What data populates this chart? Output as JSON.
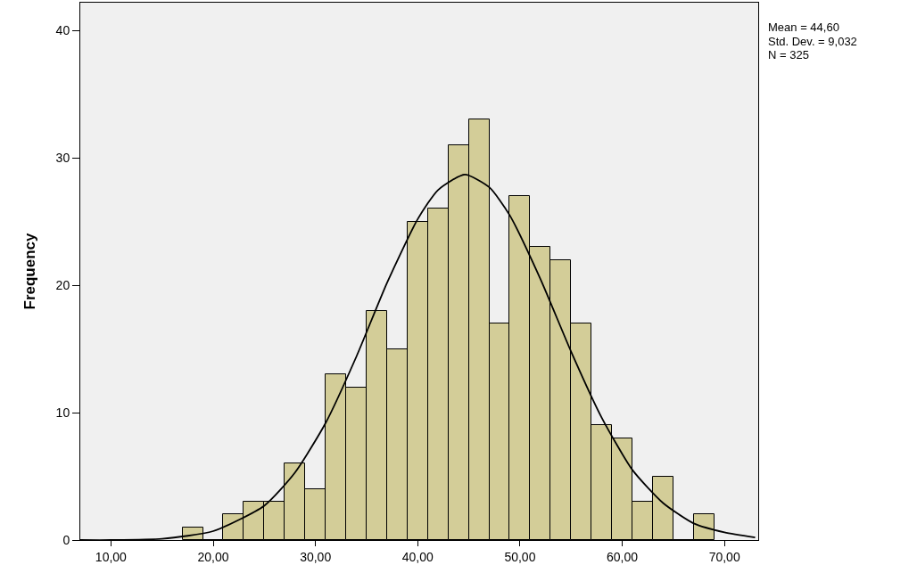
{
  "chart_data": {
    "type": "histogram",
    "ylabel": "Frequency",
    "bins": [
      17,
      19,
      21,
      23,
      25,
      27,
      29,
      31,
      33,
      35,
      37,
      39,
      41,
      43,
      45,
      47,
      49,
      51,
      53,
      55,
      57,
      59,
      61,
      63,
      65,
      67,
      69
    ],
    "values": [
      1,
      0,
      2,
      3,
      3,
      6,
      4,
      13,
      12,
      18,
      15,
      25,
      26,
      31,
      33,
      17,
      27,
      23,
      22,
      17,
      9,
      8,
      3,
      5,
      0,
      2
    ],
    "color": "#d3cd98",
    "series": [
      {
        "type": "line",
        "color": "#000000",
        "x": [
          7,
          10,
          15,
          20,
          25,
          28,
          31,
          34,
          37,
          40,
          42,
          44.6,
          47,
          49,
          52,
          55,
          58,
          61,
          64,
          67,
          70,
          73
        ],
        "values": [
          0,
          0,
          0.1,
          0.7,
          2.7,
          5.3,
          9.2,
          14.4,
          20.2,
          25.2,
          27.5,
          28.7,
          27.7,
          25.5,
          20.5,
          14.8,
          9.6,
          5.5,
          2.9,
          1.3,
          0.6,
          0.2
        ]
      }
    ],
    "xlim": [
      7,
      73.3
    ],
    "ylim": [
      0,
      42.2
    ],
    "xticks": [
      {
        "value": 10,
        "label": "10,00"
      },
      {
        "value": 20,
        "label": "20,00"
      },
      {
        "value": 30,
        "label": "30,00"
      },
      {
        "value": 40,
        "label": "40,00"
      },
      {
        "value": 50,
        "label": "50,00"
      },
      {
        "value": 60,
        "label": "60,00"
      },
      {
        "value": 70,
        "label": "70,00"
      }
    ],
    "yticks": [
      0,
      10,
      20,
      30,
      40
    ],
    "grid": false,
    "annotations": [
      "Mean = 44,60",
      "Std. Dev. = 9,032",
      "N = 325"
    ]
  }
}
